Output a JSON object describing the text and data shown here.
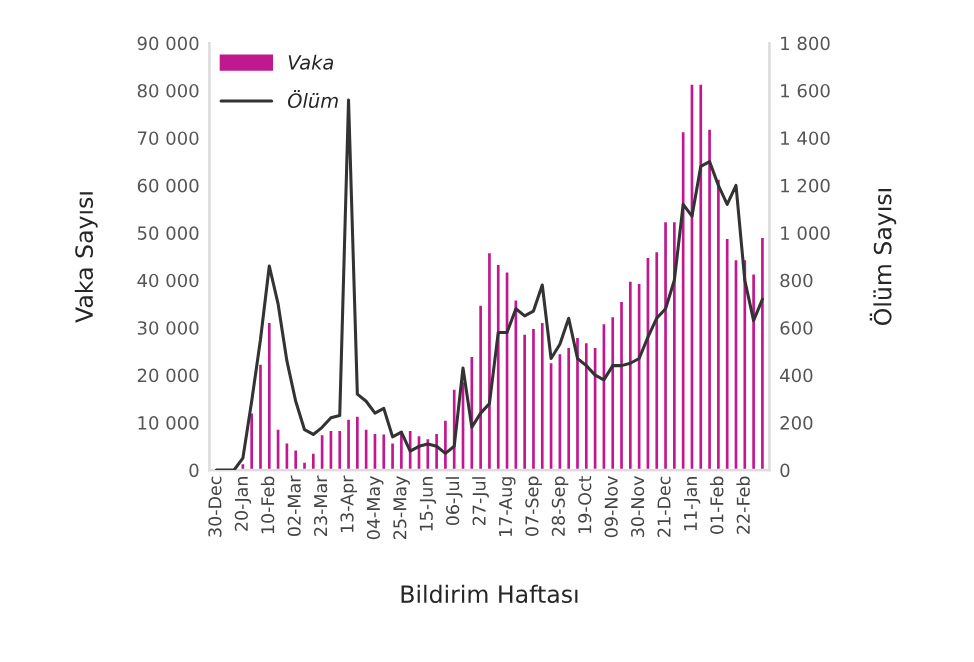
{
  "chart_data": {
    "type": "bar",
    "xlabel": "Bildirim Haftası",
    "ylabel": "Vaka Sayısı",
    "y2label": "Ölüm Sayısı",
    "categories": [
      "30-Dec",
      null,
      null,
      "20-Jan",
      null,
      null,
      "10-Feb",
      null,
      null,
      "02-Mar",
      null,
      null,
      "23-Mar",
      null,
      null,
      "13-Apr",
      null,
      null,
      "04-May",
      null,
      null,
      "25-May",
      null,
      null,
      "15-Jun",
      null,
      null,
      "06-Jul",
      null,
      null,
      "27-Jul",
      null,
      null,
      "17-Aug",
      null,
      null,
      "07-Sep",
      null,
      null,
      "28-Sep",
      null,
      null,
      "19-Oct",
      null,
      null,
      "09-Nov",
      null,
      null,
      "30-Nov",
      null,
      null,
      "21-Dec",
      null,
      null,
      "11-Jan",
      null,
      null,
      "01-Feb",
      null,
      null,
      "22-Feb",
      null,
      null
    ],
    "series": [
      {
        "name": "Vaka",
        "color": "#c0188f",
        "values": [
          null,
          null,
          null,
          1500,
          12200,
          22500,
          31300,
          8800,
          5900,
          4400,
          1800,
          3700,
          7600,
          8500,
          8500,
          10900,
          11500,
          8800,
          7900,
          7800,
          5900,
          8500,
          8500,
          7400,
          6800,
          7900,
          10700,
          17200,
          18800,
          24100,
          34900,
          46000,
          43500,
          41900,
          36000,
          28800,
          30000,
          31300,
          22800,
          24700,
          26000,
          28100,
          27000,
          26000,
          31000,
          32500,
          35700,
          40000,
          39500,
          45000,
          46200,
          52500,
          52500,
          71500,
          81500,
          81500,
          72000,
          61500,
          49000,
          44500,
          44500,
          41500,
          49200
        ]
      },
      {
        "name": "Ölüm",
        "type": "line",
        "axis": "y2",
        "color": "#333333",
        "values": [
          0,
          0,
          0,
          50,
          290,
          550,
          860,
          700,
          460,
          290,
          170,
          150,
          180,
          220,
          230,
          1560,
          320,
          290,
          240,
          260,
          140,
          160,
          80,
          100,
          110,
          100,
          70,
          100,
          430,
          180,
          240,
          280,
          580,
          580,
          680,
          650,
          670,
          780,
          470,
          530,
          640,
          470,
          440,
          400,
          380,
          440,
          440,
          450,
          470,
          560,
          640,
          680,
          800,
          1120,
          1070,
          1280,
          1300,
          1200,
          1120,
          1200,
          800,
          630,
          720
        ]
      }
    ],
    "ylim": [
      0,
      90000
    ],
    "yticks": [
      {
        "value": 0,
        "label": "0"
      },
      {
        "value": 10000,
        "label": "10 000"
      },
      {
        "value": 20000,
        "label": "20 000"
      },
      {
        "value": 30000,
        "label": "30 000"
      },
      {
        "value": 40000,
        "label": "40 000"
      },
      {
        "value": 50000,
        "label": "50 000"
      },
      {
        "value": 60000,
        "label": "60 000"
      },
      {
        "value": 70000,
        "label": "70 000"
      },
      {
        "value": 80000,
        "label": "80 000"
      },
      {
        "value": 90000,
        "label": "90 000"
      }
    ],
    "y2lim": [
      0,
      1800
    ],
    "y2ticks": [
      0,
      {
        "value": 200,
        "label": "200"
      },
      400,
      600,
      800,
      {
        "value": 1000,
        "label": "1 000"
      },
      {
        "value": 1200,
        "label": "1 200"
      },
      {
        "value": 1400,
        "label": "1 400"
      },
      {
        "value": 1600,
        "label": "1 600"
      },
      {
        "value": 1800,
        "label": "1 800"
      }
    ],
    "legend": "top left",
    "grid": false
  }
}
